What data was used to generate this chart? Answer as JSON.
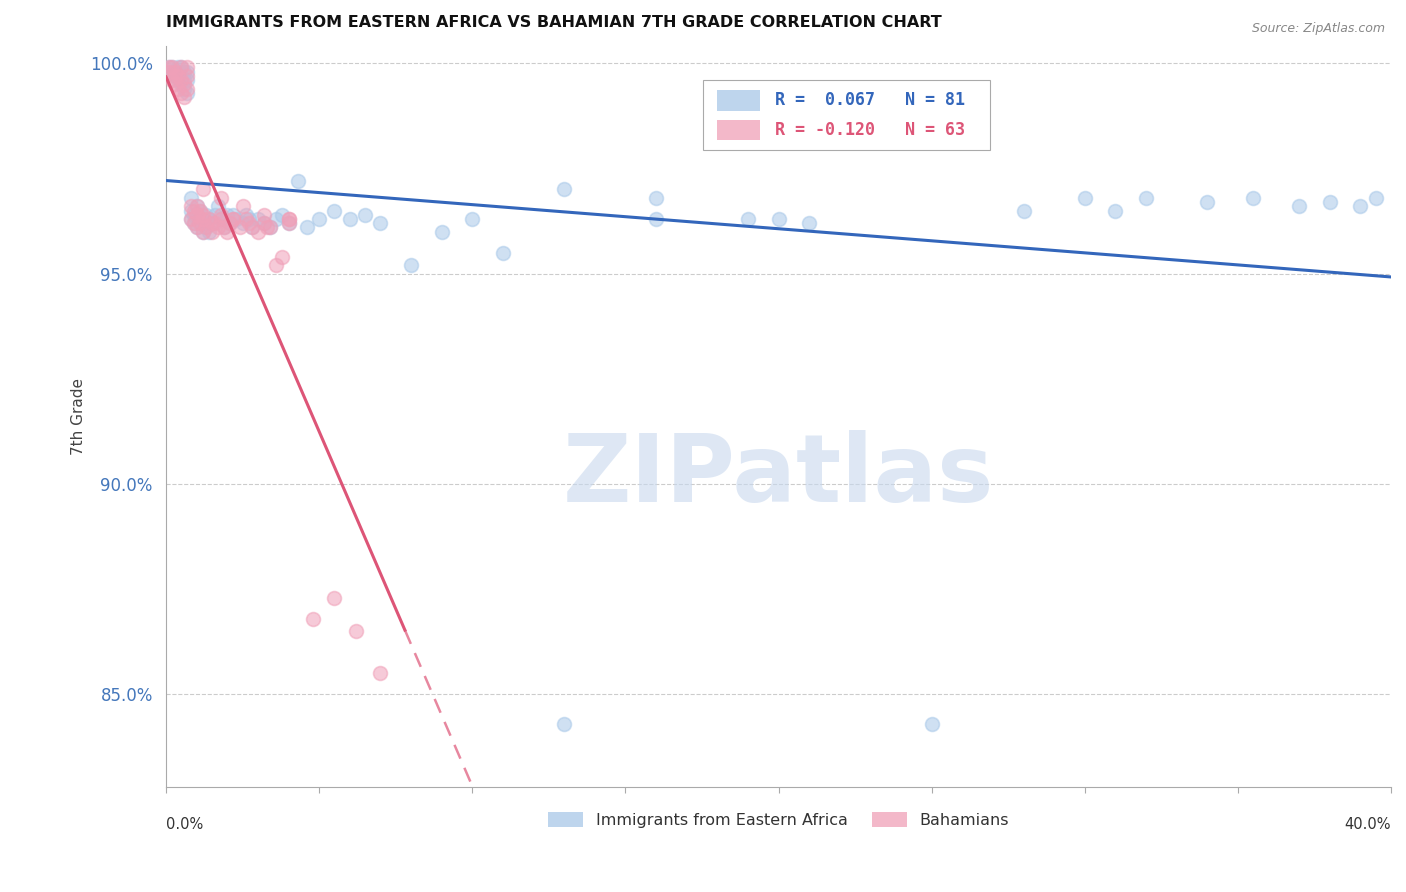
{
  "title": "IMMIGRANTS FROM EASTERN AFRICA VS BAHAMIAN 7TH GRADE CORRELATION CHART",
  "source": "Source: ZipAtlas.com",
  "ylabel": "7th Grade",
  "legend_blue_r": "0.067",
  "legend_blue_n": "81",
  "legend_pink_r": "-0.120",
  "legend_pink_n": "63",
  "legend_label_blue": "Immigrants from Eastern Africa",
  "legend_label_pink": "Bahamians",
  "blue_color": "#a8c8e8",
  "pink_color": "#f0a0b8",
  "blue_line_color": "#3366bb",
  "pink_line_color": "#dd5577",
  "xlim": [
    0.0,
    0.4
  ],
  "ylim": [
    0.828,
    1.004
  ],
  "ytick_positions": [
    0.85,
    0.9,
    0.95,
    1.0
  ],
  "ytick_labels": [
    "85.0%",
    "90.0%",
    "95.0%",
    "100.0%"
  ],
  "blue_x": [
    0.001,
    0.002,
    0.002,
    0.003,
    0.003,
    0.004,
    0.004,
    0.004,
    0.005,
    0.005,
    0.005,
    0.006,
    0.006,
    0.006,
    0.007,
    0.007,
    0.007,
    0.008,
    0.008,
    0.008,
    0.009,
    0.009,
    0.01,
    0.01,
    0.01,
    0.011,
    0.011,
    0.012,
    0.012,
    0.013,
    0.013,
    0.014,
    0.014,
    0.015,
    0.016,
    0.017,
    0.018,
    0.019,
    0.02,
    0.021,
    0.022,
    0.023,
    0.025,
    0.026,
    0.027,
    0.028,
    0.03,
    0.032,
    0.034,
    0.036,
    0.038,
    0.04,
    0.043,
    0.046,
    0.05,
    0.055,
    0.06,
    0.065,
    0.07,
    0.08,
    0.09,
    0.1,
    0.11,
    0.13,
    0.16,
    0.2,
    0.13,
    0.16,
    0.28,
    0.3,
    0.31,
    0.32,
    0.34,
    0.355,
    0.37,
    0.38,
    0.39,
    0.395,
    0.25,
    0.21,
    0.19
  ],
  "blue_y": [
    0.999,
    0.998,
    0.999,
    0.997,
    0.998,
    0.996,
    0.998,
    0.999,
    0.995,
    0.997,
    0.999,
    0.994,
    0.996,
    0.998,
    0.993,
    0.996,
    0.998,
    0.963,
    0.965,
    0.968,
    0.962,
    0.964,
    0.961,
    0.963,
    0.966,
    0.962,
    0.965,
    0.96,
    0.963,
    0.961,
    0.964,
    0.96,
    0.963,
    0.962,
    0.964,
    0.966,
    0.963,
    0.961,
    0.964,
    0.962,
    0.964,
    0.963,
    0.962,
    0.964,
    0.963,
    0.961,
    0.963,
    0.962,
    0.961,
    0.963,
    0.964,
    0.962,
    0.972,
    0.961,
    0.963,
    0.965,
    0.963,
    0.964,
    0.962,
    0.952,
    0.96,
    0.963,
    0.955,
    0.843,
    0.963,
    0.963,
    0.97,
    0.968,
    0.965,
    0.968,
    0.965,
    0.968,
    0.967,
    0.968,
    0.966,
    0.967,
    0.966,
    0.968,
    0.843,
    0.962,
    0.963
  ],
  "pink_x": [
    0.001,
    0.001,
    0.002,
    0.002,
    0.003,
    0.003,
    0.003,
    0.004,
    0.004,
    0.005,
    0.005,
    0.005,
    0.006,
    0.006,
    0.007,
    0.007,
    0.007,
    0.008,
    0.008,
    0.009,
    0.009,
    0.01,
    0.01,
    0.011,
    0.011,
    0.012,
    0.012,
    0.013,
    0.014,
    0.015,
    0.016,
    0.017,
    0.018,
    0.019,
    0.02,
    0.021,
    0.022,
    0.024,
    0.026,
    0.028,
    0.03,
    0.032,
    0.034,
    0.036,
    0.038,
    0.04,
    0.01,
    0.012,
    0.015,
    0.018,
    0.022,
    0.027,
    0.033,
    0.04,
    0.012,
    0.018,
    0.025,
    0.032,
    0.04,
    0.048,
    0.055,
    0.062,
    0.07
  ],
  "pink_y": [
    0.998,
    0.999,
    0.996,
    0.999,
    0.997,
    0.995,
    0.998,
    0.994,
    0.997,
    0.993,
    0.996,
    0.999,
    0.992,
    0.995,
    0.994,
    0.997,
    0.999,
    0.963,
    0.966,
    0.962,
    0.965,
    0.961,
    0.964,
    0.962,
    0.965,
    0.96,
    0.963,
    0.961,
    0.963,
    0.96,
    0.962,
    0.961,
    0.963,
    0.961,
    0.96,
    0.962,
    0.963,
    0.961,
    0.963,
    0.961,
    0.96,
    0.962,
    0.961,
    0.952,
    0.954,
    0.963,
    0.966,
    0.964,
    0.962,
    0.964,
    0.963,
    0.962,
    0.961,
    0.963,
    0.97,
    0.968,
    0.966,
    0.964,
    0.962,
    0.868,
    0.873,
    0.865,
    0.855
  ],
  "watermark_text": "ZIPatlas",
  "watermark_color": "#c8d8ee",
  "watermark_alpha": 0.6
}
